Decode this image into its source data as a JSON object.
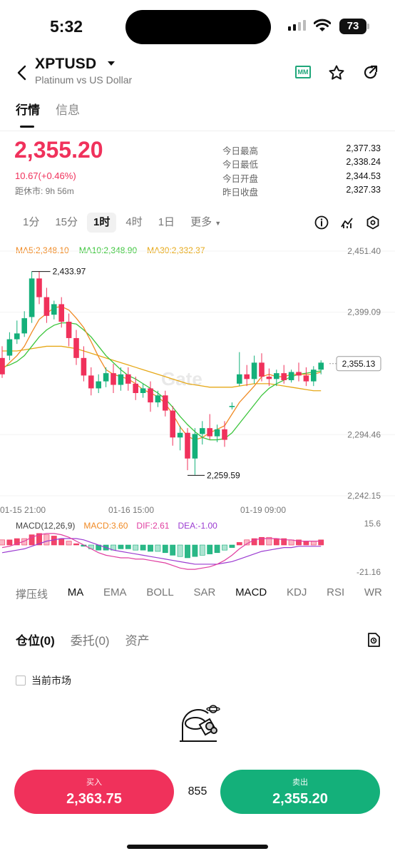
{
  "status_bar": {
    "time": "5:32",
    "battery": "73"
  },
  "header": {
    "symbol": "XPTUSD",
    "subtitle": "Platinum vs US Dollar",
    "mm_label": "MM"
  },
  "tabs": [
    {
      "label": "行情",
      "active": true
    },
    {
      "label": "信息",
      "active": false
    }
  ],
  "quote": {
    "price": "2,355.20",
    "change": "10.67(+0.46%)",
    "closing_label": "距休市: 9h 56m",
    "stats": [
      {
        "label": "今日最高",
        "value": "2,377.33"
      },
      {
        "label": "今日最低",
        "value": "2,338.24"
      },
      {
        "label": "今日开盘",
        "value": "2,344.53"
      },
      {
        "label": "昨日收盘",
        "value": "2,327.33"
      }
    ]
  },
  "intervals": [
    "1分",
    "15分",
    "1时",
    "4时",
    "1日",
    "更多"
  ],
  "active_interval": "1时",
  "ma_legend": {
    "ma5": "MA5:2,348.10",
    "ma10": "MA10:2,348.90",
    "ma30": "MA30:2,332.37"
  },
  "price_axis": [
    "2,451.40",
    "2,399.09",
    "2,294.46",
    "2,242.15"
  ],
  "current_price_tag": "2,355.13",
  "annotations": {
    "high": "2,433.97",
    "low": "2,259.59"
  },
  "time_axis": [
    "01-15 21:00",
    "01-16 15:00",
    "01-19 09:00"
  ],
  "watermark": "Gate",
  "macd_legend": {
    "params": "MACD(12,26,9)",
    "macd": "MACD:3.60",
    "dif": "DIF:2.61",
    "dea": "DEA:-1.00"
  },
  "macd_axis": [
    "15.6",
    "-21.16"
  ],
  "indicator_tabs": [
    "撑压线",
    "MA",
    "EMA",
    "BOLL",
    "SAR",
    "MACD",
    "KDJ",
    "RSI",
    "WR"
  ],
  "position_tabs": [
    "仓位(0)",
    "委托(0)",
    "资产"
  ],
  "filter_label": "当前市场",
  "trade": {
    "buy_label": "买入",
    "buy_price": "2,363.75",
    "spread": "855",
    "sell_label": "卖出",
    "sell_price": "2,355.20"
  },
  "colors": {
    "up": "#f0315b",
    "down": "#14b07a",
    "ma5": "#f08a24",
    "ma10": "#3cc53c",
    "ma30": "#e6a817",
    "dif": "#e03ea0",
    "dea": "#9b3bd1"
  },
  "chart_data": {
    "type": "candlestick",
    "ylim": [
      2242.15,
      2451.4
    ],
    "yticks": [
      2451.4,
      2399.09,
      2294.46,
      2242.15
    ],
    "xticks": [
      "01-15 21:00",
      "01-16 15:00",
      "01-19 09:00"
    ],
    "last_price": 2355.13,
    "high_marker": 2433.97,
    "low_marker": 2259.59,
    "candles": [
      [
        2360,
        2370,
        2346,
        2343
      ],
      [
        2362,
        2382,
        2376,
        2358
      ],
      [
        2376,
        2392,
        2381,
        2372
      ],
      [
        2381,
        2400,
        2394,
        2378
      ],
      [
        2395,
        2434,
        2428,
        2390
      ],
      [
        2428,
        2434,
        2412,
        2406
      ],
      [
        2412,
        2420,
        2396,
        2390
      ],
      [
        2397,
        2409,
        2406,
        2393
      ],
      [
        2406,
        2412,
        2391,
        2386
      ],
      [
        2391,
        2398,
        2377,
        2370
      ],
      [
        2377,
        2384,
        2360,
        2354
      ],
      [
        2360,
        2370,
        2345,
        2340
      ],
      [
        2345,
        2352,
        2334,
        2328
      ],
      [
        2334,
        2346,
        2340,
        2330
      ],
      [
        2340,
        2352,
        2347,
        2335
      ],
      [
        2347,
        2355,
        2337,
        2330
      ],
      [
        2337,
        2352,
        2346,
        2332
      ],
      [
        2346,
        2352,
        2338,
        2332
      ],
      [
        2338,
        2344,
        2330,
        2324
      ],
      [
        2330,
        2338,
        2334,
        2326
      ],
      [
        2334,
        2340,
        2322,
        2314
      ],
      [
        2322,
        2332,
        2328,
        2318
      ],
      [
        2328,
        2332,
        2315,
        2310
      ],
      [
        2315,
        2319,
        2292,
        2285
      ],
      [
        2292,
        2302,
        2296,
        2281
      ],
      [
        2296,
        2300,
        2274,
        2264
      ],
      [
        2274,
        2300,
        2295,
        2260
      ],
      [
        2295,
        2306,
        2300,
        2286
      ],
      [
        2300,
        2312,
        2293,
        2290
      ],
      [
        2293,
        2303,
        2299,
        2288
      ],
      [
        2299,
        2306,
        2290,
        2284
      ],
      [
        2318,
        2322,
        2319,
        2316
      ],
      [
        2338,
        2365,
        2346,
        2336
      ],
      [
        2346,
        2354,
        2342,
        2336
      ],
      [
        2342,
        2362,
        2356,
        2338
      ],
      [
        2356,
        2364,
        2344,
        2340
      ],
      [
        2344,
        2351,
        2342,
        2336
      ],
      [
        2342,
        2350,
        2347,
        2336
      ],
      [
        2347,
        2354,
        2341,
        2338
      ],
      [
        2341,
        2350,
        2348,
        2339
      ],
      [
        2348,
        2356,
        2345,
        2340
      ],
      [
        2345,
        2352,
        2340,
        2336
      ],
      [
        2340,
        2353,
        2350,
        2336
      ],
      [
        2350,
        2358,
        2356,
        2346
      ]
    ],
    "ma5": [
      2350,
      2356,
      2362,
      2370,
      2382,
      2393,
      2398,
      2403,
      2404,
      2401,
      2394,
      2386,
      2374,
      2361,
      2350,
      2346,
      2344,
      2342,
      2338,
      2333,
      2330,
      2327,
      2321,
      2312,
      2301,
      2293,
      2290,
      2292,
      2296,
      2299,
      2302,
      2312,
      2322,
      2329,
      2336,
      2344,
      2346,
      2344,
      2344,
      2346,
      2346,
      2346,
      2346,
      2348
    ],
    "ma10": [
      2352,
      2354,
      2357,
      2362,
      2370,
      2378,
      2384,
      2388,
      2390,
      2390,
      2389,
      2384,
      2378,
      2370,
      2362,
      2356,
      2350,
      2345,
      2342,
      2338,
      2334,
      2330,
      2325,
      2318,
      2310,
      2303,
      2297,
      2292,
      2290,
      2290,
      2291,
      2296,
      2304,
      2312,
      2320,
      2328,
      2334,
      2338,
      2341,
      2344,
      2346,
      2347,
      2348,
      2349
    ],
    "ma30": [
      2366,
      2366,
      2366,
      2367,
      2368,
      2369,
      2370,
      2370,
      2370,
      2369,
      2368,
      2366,
      2364,
      2362,
      2360,
      2358,
      2356,
      2354,
      2352,
      2350,
      2348,
      2346,
      2344,
      2342,
      2340,
      2338,
      2337,
      2336,
      2335,
      2335,
      2335,
      2335,
      2336,
      2337,
      2338,
      2338,
      2338,
      2337,
      2336,
      2335,
      2334,
      2333,
      2332,
      2332
    ],
    "macd": {
      "ylim": [
        -21.16,
        15.6
      ],
      "hist": [
        4,
        4,
        5,
        5,
        8,
        9,
        8,
        7,
        5,
        3,
        1,
        -1,
        -3,
        -4,
        -4,
        -4,
        -3,
        -3,
        -4,
        -4,
        -5,
        -5,
        -6,
        -8,
        -9,
        -10,
        -9,
        -8,
        -7,
        -6,
        -4,
        -2,
        2,
        4,
        5,
        6,
        6,
        5,
        5,
        4,
        4,
        3,
        3,
        4
      ],
      "dif": [
        -2,
        -1,
        1,
        3,
        6,
        8,
        9,
        9,
        8,
        6,
        3,
        0,
        -3,
        -6,
        -8,
        -9,
        -10,
        -10,
        -11,
        -11,
        -12,
        -13,
        -14,
        -16,
        -18,
        -19,
        -19,
        -18,
        -17,
        -15,
        -12,
        -8,
        -3,
        1,
        4,
        5,
        5,
        5,
        4,
        4,
        3,
        3,
        3,
        3
      ],
      "dea": [
        -6,
        -5,
        -4,
        -3,
        -1,
        1,
        3,
        4,
        5,
        5,
        5,
        4,
        2,
        0,
        -2,
        -4,
        -5,
        -6,
        -7,
        -8,
        -9,
        -10,
        -11,
        -12,
        -13,
        -14,
        -15,
        -15,
        -15,
        -15,
        -14,
        -13,
        -11,
        -9,
        -7,
        -5,
        -4,
        -3,
        -2,
        -2,
        -1,
        -1,
        -1,
        -1
      ]
    }
  }
}
